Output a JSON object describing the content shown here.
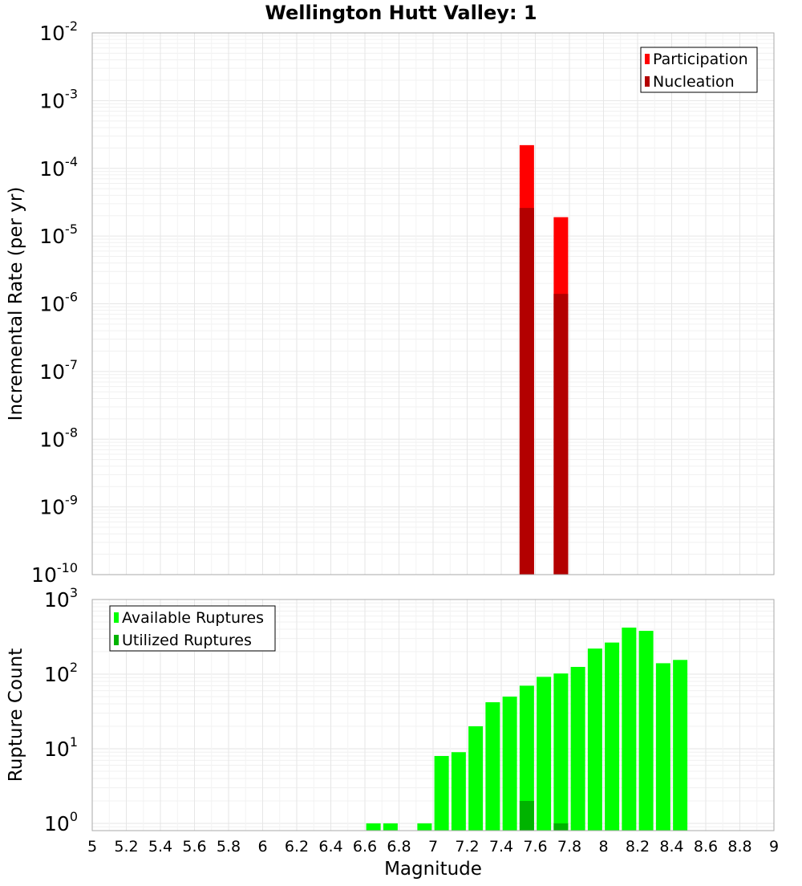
{
  "title": "Wellington Hutt Valley: 1",
  "xlabel": "Magnitude",
  "x_ticks": [
    "5",
    "5.2",
    "5.4",
    "5.6",
    "5.8",
    "6",
    "6.2",
    "6.4",
    "6.6",
    "6.8",
    "7",
    "7.2",
    "7.4",
    "7.6",
    "7.8",
    "8",
    "8.2",
    "8.4",
    "8.6",
    "8.8",
    "9"
  ],
  "colors": {
    "participation": "#ff0000",
    "nucleation": "#b30000",
    "available": "#00ff00",
    "utilized": "#00b300",
    "grid": "#e6e6e6",
    "frame": "#aaaaaa"
  },
  "chart_data": [
    {
      "type": "bar",
      "title": "Wellington Hutt Valley: 1",
      "xlabel": "",
      "ylabel": "Incremental Rate (per yr)",
      "y_scale": "log",
      "xlim": [
        5,
        9
      ],
      "ylim": [
        1e-10,
        0.01
      ],
      "y_tick_exponents": [
        -2,
        -3,
        -4,
        -5,
        -6,
        -7,
        -8,
        -9,
        -10
      ],
      "legend_position": "top-right",
      "series": [
        {
          "name": "Participation",
          "x": [
            7.55,
            7.75
          ],
          "values": [
            0.00022,
            1.9e-05
          ]
        },
        {
          "name": "Nucleation",
          "x": [
            7.55,
            7.75
          ],
          "values": [
            2.6e-05,
            1.4e-06
          ]
        }
      ]
    },
    {
      "type": "bar",
      "xlabel": "Magnitude",
      "ylabel": "Rupture Count",
      "y_scale": "log",
      "xlim": [
        5,
        9
      ],
      "ylim": [
        0.8,
        1000
      ],
      "y_tick_exponents": [
        3,
        2,
        1,
        0
      ],
      "legend_position": "top-left",
      "series": [
        {
          "name": "Available Ruptures",
          "x": [
            6.65,
            6.75,
            6.95,
            7.05,
            7.15,
            7.25,
            7.35,
            7.45,
            7.55,
            7.65,
            7.75,
            7.85,
            7.95,
            8.05,
            8.15,
            8.25,
            8.35,
            8.45
          ],
          "values": [
            1,
            1,
            1,
            8,
            9,
            20,
            42,
            50,
            70,
            92,
            102,
            125,
            220,
            265,
            420,
            380,
            140,
            155
          ]
        },
        {
          "name": "Utilized Ruptures",
          "x": [
            7.55,
            7.75
          ],
          "values": [
            2,
            1
          ]
        }
      ]
    }
  ]
}
